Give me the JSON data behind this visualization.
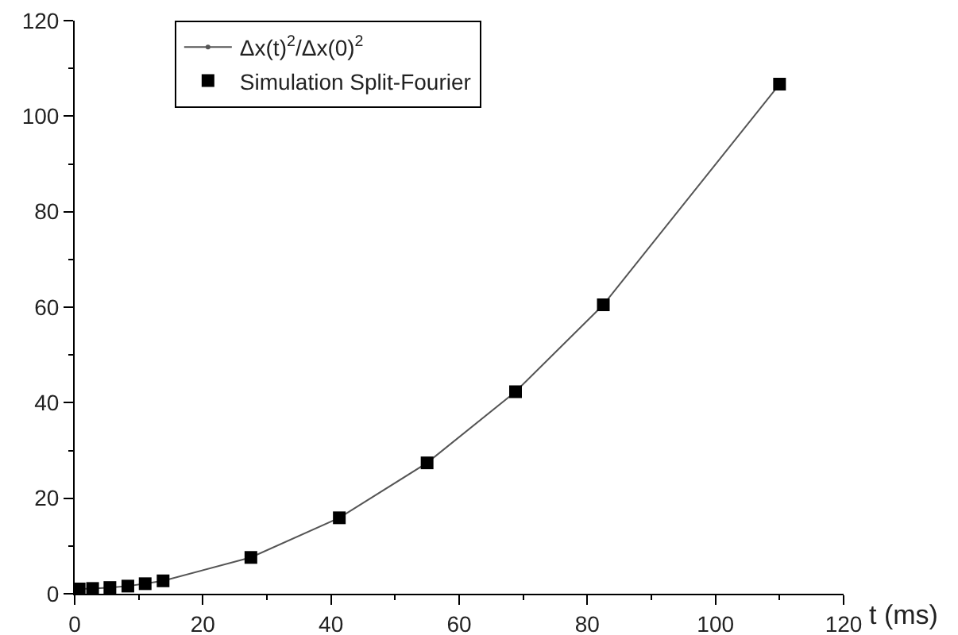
{
  "chart_data": {
    "type": "line",
    "xlabel": "t (ms)",
    "xlim": [
      0,
      120
    ],
    "xticks": [
      0,
      20,
      40,
      60,
      80,
      100,
      120
    ],
    "ylim": [
      0,
      120
    ],
    "yticks": [
      0,
      20,
      40,
      60,
      80,
      100,
      120
    ],
    "grid": false,
    "legend": "top left",
    "series": [
      {
        "name": "Δx(t)$^{2}$/Δx(0)$^{2}$",
        "marker": "circle",
        "line_style": "solid",
        "color": "#555555",
        "x": [
          0.7,
          2.8,
          5.5,
          8.3,
          11,
          13.8,
          27.5,
          41.3,
          55,
          68.8,
          82.5,
          110
        ],
        "values": [
          1.0,
          1.1,
          1.3,
          1.6,
          2.1,
          2.7,
          7.6,
          15.9,
          27.4,
          42.3,
          60.5,
          106.7
        ]
      },
      {
        "name": "Simulation Split-Fourier",
        "type": "scatter",
        "marker": "square",
        "color": "#000000",
        "x": [
          0.7,
          2.8,
          5.5,
          8.3,
          11,
          13.8,
          27.5,
          41.3,
          55,
          68.8,
          82.5,
          110
        ],
        "values": [
          1.0,
          1.1,
          1.3,
          1.6,
          2.1,
          2.7,
          7.6,
          15.9,
          27.4,
          42.3,
          60.5,
          106.7
        ]
      }
    ]
  }
}
